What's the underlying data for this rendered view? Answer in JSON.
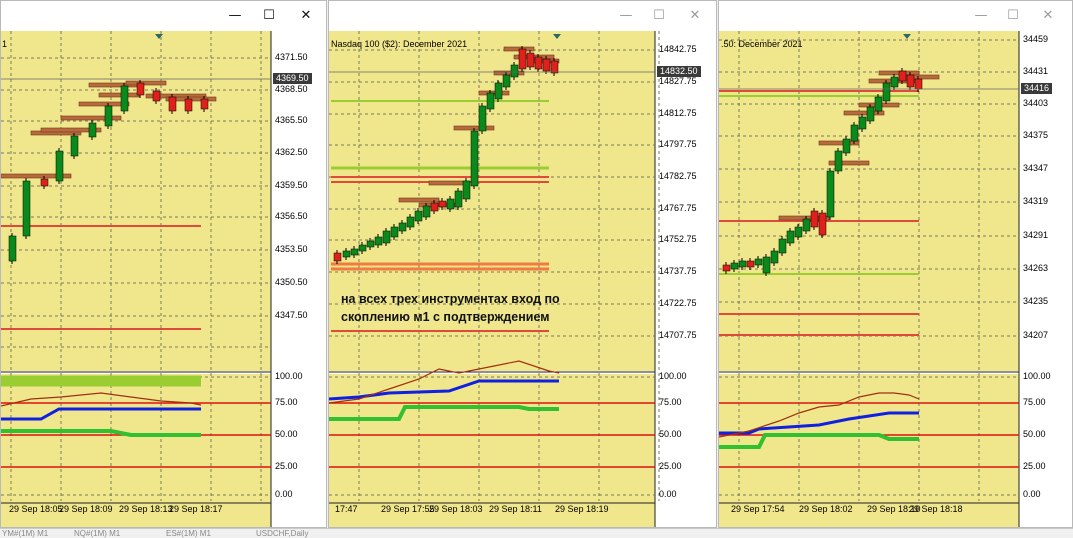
{
  "windows": [
    {
      "id": "w1",
      "title_fragment": "1",
      "active": true,
      "controls": {
        "minimize": "—",
        "maximize": "☐",
        "close": "✕"
      },
      "price_labels": [
        "4371.50",
        "4368.50",
        "4365.50",
        "4362.50",
        "4359.50",
        "4356.50",
        "4353.50",
        "4350.50",
        "4347.50"
      ],
      "current_price": "4369.50",
      "osc_labels": [
        "100.00",
        "75.00",
        "50.00",
        "25.00",
        "0.00"
      ],
      "time_labels": [
        "29 Sep 18:05",
        "29 Sep 18:09",
        "29 Sep 18:13",
        "29 Sep 18:17"
      ]
    },
    {
      "id": "w2",
      "title_fragment": "Nasdaq 100 ($2): December 2021",
      "active": false,
      "controls": {
        "minimize": "—",
        "maximize": "☐",
        "close": "✕"
      },
      "price_labels": [
        "14842.75",
        "14827.75",
        "14812.75",
        "14797.75",
        "14782.75",
        "14767.75",
        "14752.75",
        "14737.75",
        "14722.75",
        "14707.75"
      ],
      "current_price": "14832.50",
      "osc_labels": [
        "100.00",
        "75.00",
        "50.00",
        "25.00",
        "0.00"
      ],
      "time_labels": [
        "17:47",
        "29 Sep 17:55",
        "29 Sep 18:03",
        "29 Sep 18:11",
        "29 Sep 18:19"
      ],
      "note_line1": "на всех трех инструментах вход по",
      "note_line2": "скоплению м1 с подтверждением"
    },
    {
      "id": "w3",
      "title_fragment": ".50: December 2021",
      "active": false,
      "controls": {
        "minimize": "—",
        "maximize": "☐",
        "close": "✕"
      },
      "price_labels": [
        "34459",
        "34431",
        "34403",
        "34375",
        "34347",
        "34319",
        "34291",
        "34263",
        "34235",
        "34207"
      ],
      "current_price": "34416",
      "osc_labels": [
        "100.00",
        "75.00",
        "50.00",
        "25.00",
        "0.00"
      ],
      "time_labels": [
        "29 Sep 17:54",
        "29 Sep 18:02",
        "29 Sep 18:10",
        "29 Sep 18:18"
      ]
    }
  ],
  "colors": {
    "chart_bg": "#f0e68c",
    "grid": "#7a7a5a",
    "bull": "#0a8a1a",
    "bear": "#e0201a",
    "cluster": "#b86a3c",
    "osc_red": "#e01010",
    "osc_blue": "#1020e0",
    "osc_green": "#30c030",
    "osc_brown": "#a03010",
    "level_green": "#9acd32",
    "level_red": "#e04a3a",
    "level_orange": "#f07a40"
  },
  "statusbar": {
    "tabs": [
      "YM#(1M) M1",
      "NQ#(1M) M1",
      "ES#(1M) M1",
      "USDCHF,Daily"
    ]
  }
}
